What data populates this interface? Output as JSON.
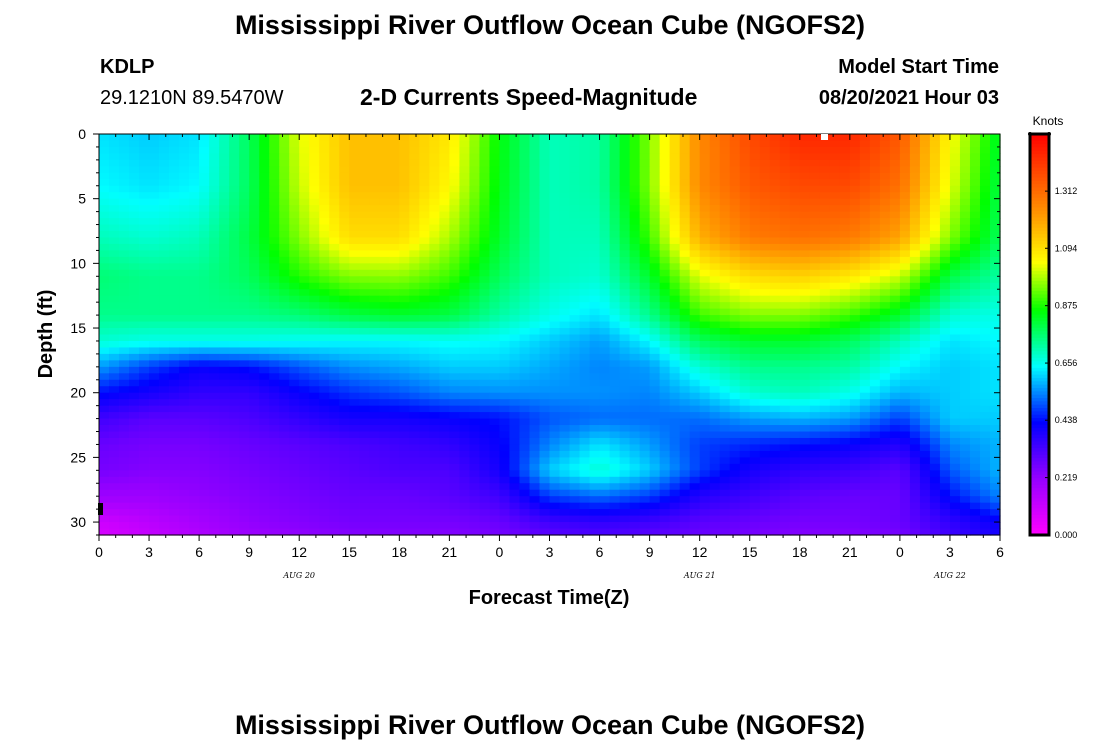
{
  "header": {
    "title": "Mississippi River Outflow Ocean Cube (NGOFS2)",
    "station_id": "KDLP",
    "station_coords": "29.1210N  89.5470W",
    "subtitle": "2-D Currents Speed-Magnitude",
    "model_start_label": "Model Start Time",
    "model_start_value": "08/20/2021 Hour 03"
  },
  "footer": {
    "title": "Mississippi River Outflow Ocean Cube (NGOFS2)"
  },
  "chart_data": {
    "type": "heatmap",
    "title": "2-D Currents Speed-Magnitude",
    "xlabel": "Forecast Time(Z)",
    "ylabel": "Depth (ft)",
    "x_tick_labels": [
      "0",
      "3",
      "6",
      "9",
      "12",
      "15",
      "18",
      "21",
      "0",
      "3",
      "6",
      "9",
      "12",
      "15",
      "18",
      "21",
      "0",
      "3",
      "6"
    ],
    "date_labels": [
      "AUG  20",
      "AUG  21",
      "AUG  22"
    ],
    "y_ticks": [
      0,
      5,
      10,
      15,
      20,
      25,
      30
    ],
    "ylim": [
      31,
      0
    ],
    "x_range_hours": [
      0,
      54
    ],
    "colorbar": {
      "label": "Knots",
      "ticks": [
        "1.312",
        "1.094",
        "0.875",
        "0.656",
        "0.438",
        "0.219",
        "0.000"
      ],
      "range": [
        0,
        1.53
      ]
    },
    "depths_ft": [
      0,
      4,
      8,
      11,
      14,
      16,
      18,
      20,
      22,
      24,
      26,
      28,
      30,
      31
    ],
    "times_h": [
      0,
      3,
      6,
      9,
      12,
      15,
      18,
      21,
      24,
      27,
      30,
      33,
      36,
      39,
      42,
      45,
      48,
      51,
      54
    ],
    "speed_knots": [
      [
        0.62,
        0.6,
        0.62,
        0.78,
        1.02,
        1.15,
        1.15,
        1.08,
        0.85,
        0.7,
        0.72,
        0.95,
        1.25,
        1.38,
        1.45,
        1.45,
        1.35,
        1.05,
        0.82
      ],
      [
        0.64,
        0.62,
        0.64,
        0.78,
        1.0,
        1.15,
        1.15,
        1.05,
        0.84,
        0.7,
        0.72,
        0.95,
        1.25,
        1.35,
        1.38,
        1.38,
        1.3,
        1.02,
        0.8
      ],
      [
        0.7,
        0.68,
        0.7,
        0.8,
        0.95,
        1.1,
        1.1,
        0.98,
        0.82,
        0.7,
        0.7,
        0.9,
        1.18,
        1.28,
        1.3,
        1.28,
        1.2,
        0.95,
        0.78
      ],
      [
        0.76,
        0.74,
        0.74,
        0.78,
        0.88,
        0.95,
        0.96,
        0.9,
        0.78,
        0.7,
        0.68,
        0.82,
        1.02,
        1.1,
        1.12,
        1.08,
        1.0,
        0.8,
        0.72
      ],
      [
        0.74,
        0.74,
        0.74,
        0.74,
        0.76,
        0.8,
        0.82,
        0.8,
        0.72,
        0.66,
        0.62,
        0.74,
        0.9,
        0.95,
        0.95,
        0.9,
        0.82,
        0.68,
        0.66
      ],
      [
        0.68,
        0.66,
        0.66,
        0.66,
        0.65,
        0.64,
        0.64,
        0.65,
        0.64,
        0.6,
        0.56,
        0.64,
        0.78,
        0.82,
        0.82,
        0.78,
        0.7,
        0.62,
        0.64
      ],
      [
        0.56,
        0.48,
        0.42,
        0.44,
        0.5,
        0.55,
        0.57,
        0.6,
        0.6,
        0.57,
        0.54,
        0.56,
        0.68,
        0.74,
        0.74,
        0.72,
        0.64,
        0.6,
        0.62
      ],
      [
        0.44,
        0.4,
        0.36,
        0.36,
        0.42,
        0.47,
        0.5,
        0.54,
        0.55,
        0.55,
        0.55,
        0.54,
        0.6,
        0.68,
        0.7,
        0.66,
        0.58,
        0.6,
        0.62
      ],
      [
        0.34,
        0.3,
        0.3,
        0.32,
        0.36,
        0.4,
        0.4,
        0.42,
        0.44,
        0.5,
        0.52,
        0.52,
        0.52,
        0.56,
        0.58,
        0.56,
        0.48,
        0.6,
        0.6
      ],
      [
        0.28,
        0.26,
        0.26,
        0.28,
        0.3,
        0.32,
        0.34,
        0.36,
        0.42,
        0.54,
        0.62,
        0.56,
        0.48,
        0.46,
        0.44,
        0.42,
        0.38,
        0.54,
        0.58
      ],
      [
        0.26,
        0.24,
        0.24,
        0.26,
        0.28,
        0.3,
        0.32,
        0.32,
        0.4,
        0.6,
        0.68,
        0.6,
        0.48,
        0.4,
        0.36,
        0.34,
        0.3,
        0.5,
        0.58
      ],
      [
        0.2,
        0.2,
        0.22,
        0.24,
        0.26,
        0.28,
        0.28,
        0.3,
        0.34,
        0.48,
        0.52,
        0.48,
        0.38,
        0.34,
        0.3,
        0.28,
        0.28,
        0.44,
        0.54
      ],
      [
        0.1,
        0.14,
        0.18,
        0.22,
        0.24,
        0.26,
        0.26,
        0.26,
        0.28,
        0.34,
        0.36,
        0.34,
        0.3,
        0.28,
        0.26,
        0.26,
        0.28,
        0.36,
        0.42
      ],
      [
        0.08,
        0.12,
        0.16,
        0.2,
        0.22,
        0.24,
        0.24,
        0.24,
        0.26,
        0.3,
        0.32,
        0.3,
        0.28,
        0.26,
        0.24,
        0.24,
        0.26,
        0.34,
        0.4
      ]
    ]
  }
}
